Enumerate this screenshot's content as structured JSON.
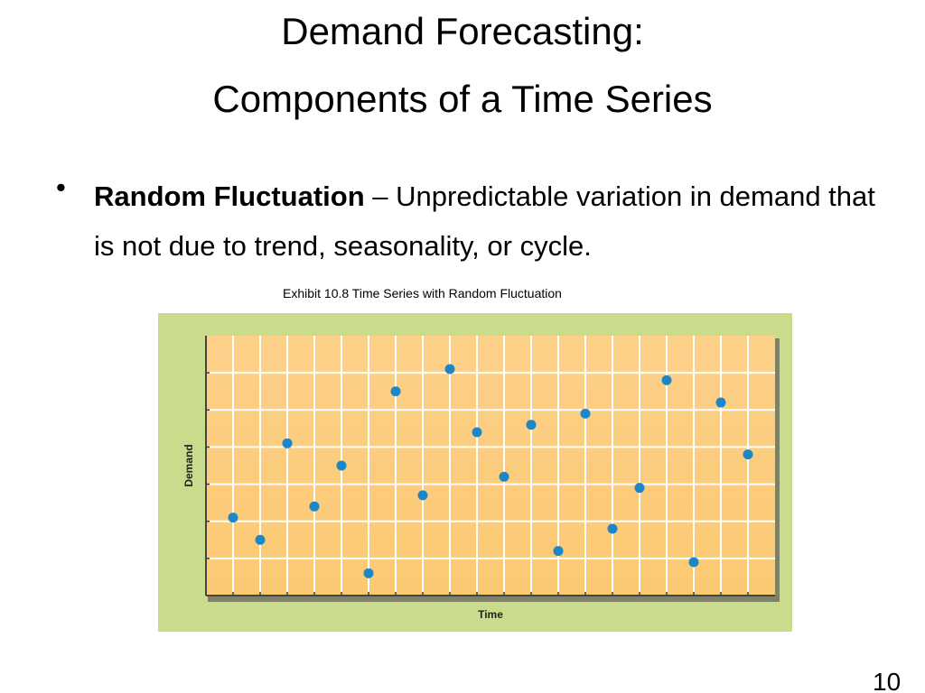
{
  "header": {
    "title_lines": [
      "Demand Forecasting:",
      "Components of a Time Series"
    ]
  },
  "bullet": {
    "term": "Random Fluctuation",
    "text": " – Unpredictable variation in demand that is not due to trend, seasonality, or cycle."
  },
  "exhibit": {
    "caption": "Exhibit 10.8 Time Series with Random Fluctuation"
  },
  "chart_data": {
    "type": "scatter",
    "x_label": "Time",
    "y_label": "Demand",
    "x": [
      1,
      2,
      3,
      4,
      5,
      6,
      7,
      8,
      9,
      10,
      11,
      12,
      13,
      14,
      15,
      16,
      17,
      18,
      19,
      20
    ],
    "values": [
      2.1,
      1.5,
      4.1,
      2.4,
      3.5,
      0.6,
      5.5,
      2.7,
      6.1,
      4.4,
      3.2,
      4.6,
      1.2,
      4.9,
      1.8,
      2.9,
      5.8,
      0.9,
      5.2,
      3.8
    ],
    "color": "#1b86c8",
    "xlim": [
      0,
      21
    ],
    "ylim": [
      0,
      7
    ],
    "grid": true
  },
  "footer": {
    "page_number": "10"
  }
}
